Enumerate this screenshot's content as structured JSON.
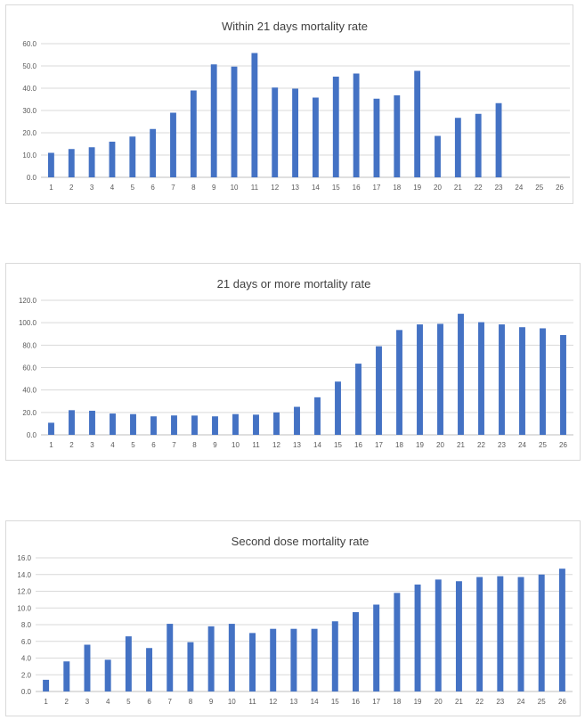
{
  "colors": {
    "bar": "#4472c4",
    "grid": "#d9d9d9",
    "axis_text": "#595959",
    "title_text": "#404040"
  },
  "chart_data": [
    {
      "type": "bar",
      "title": "Within 21 days mortality rate",
      "categories": [
        "1",
        "2",
        "3",
        "4",
        "5",
        "6",
        "7",
        "8",
        "9",
        "10",
        "11",
        "12",
        "13",
        "14",
        "15",
        "16",
        "17",
        "18",
        "19",
        "20",
        "21",
        "22",
        "23",
        "24",
        "25",
        "26"
      ],
      "values": [
        11.0,
        12.7,
        13.5,
        16.0,
        18.3,
        21.7,
        29.0,
        39.0,
        50.7,
        49.7,
        55.8,
        40.3,
        39.8,
        35.8,
        45.2,
        46.6,
        35.3,
        36.8,
        47.8,
        18.6,
        26.7,
        28.5,
        33.3,
        null,
        null,
        null
      ],
      "yticks": [
        "0.0",
        "10.0",
        "20.0",
        "30.0",
        "40.0",
        "50.0",
        "60.0"
      ],
      "ylim": [
        0,
        60
      ],
      "xlabel": "",
      "ylabel": ""
    },
    {
      "type": "bar",
      "title": "21 days or more mortality rate",
      "categories": [
        "1",
        "2",
        "3",
        "4",
        "5",
        "6",
        "7",
        "8",
        "9",
        "10",
        "11",
        "12",
        "13",
        "14",
        "15",
        "16",
        "17",
        "18",
        "19",
        "20",
        "21",
        "22",
        "23",
        "24",
        "25",
        "26"
      ],
      "values": [
        10.8,
        22.0,
        21.5,
        19.0,
        18.5,
        16.5,
        17.3,
        17.2,
        16.5,
        18.5,
        18.0,
        20.0,
        25.0,
        33.5,
        47.5,
        63.5,
        79.0,
        93.5,
        98.5,
        99.0,
        108.0,
        100.5,
        98.5,
        96.0,
        95.0,
        89.0
      ],
      "yticks": [
        "0.0",
        "20.0",
        "40.0",
        "60.0",
        "80.0",
        "100.0",
        "120.0"
      ],
      "ylim": [
        0,
        120
      ],
      "xlabel": "",
      "ylabel": ""
    },
    {
      "type": "bar",
      "title": "Second dose mortality rate",
      "categories": [
        "1",
        "2",
        "3",
        "4",
        "5",
        "6",
        "7",
        "8",
        "9",
        "10",
        "11",
        "12",
        "13",
        "14",
        "15",
        "16",
        "17",
        "18",
        "19",
        "20",
        "21",
        "22",
        "23",
        "24",
        "25",
        "26"
      ],
      "values": [
        1.4,
        3.6,
        5.6,
        3.8,
        6.6,
        5.2,
        8.1,
        5.9,
        7.8,
        8.1,
        7.0,
        7.5,
        7.5,
        7.5,
        8.4,
        9.5,
        10.4,
        11.8,
        12.8,
        13.4,
        13.2,
        13.7,
        13.8,
        13.7,
        14.0,
        14.7
      ],
      "yticks": [
        "0.0",
        "2.0",
        "4.0",
        "6.0",
        "8.0",
        "10.0",
        "12.0",
        "14.0",
        "16.0"
      ],
      "ylim": [
        0,
        16
      ],
      "xlabel": "",
      "ylabel": ""
    }
  ]
}
